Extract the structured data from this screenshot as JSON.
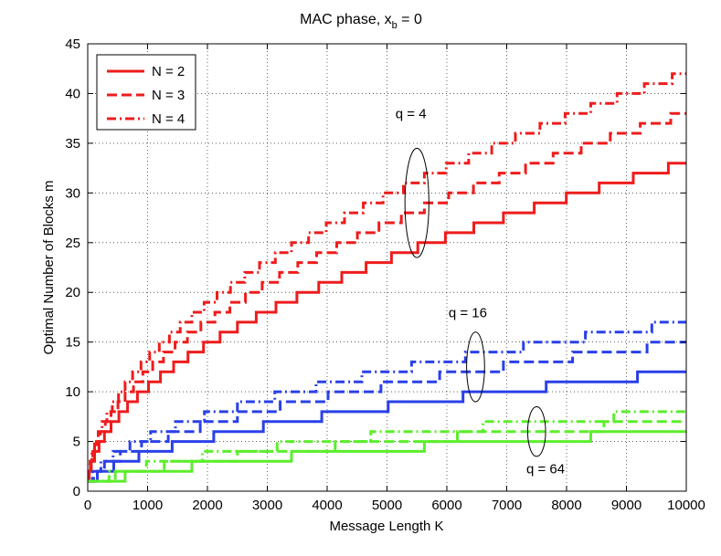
{
  "chart_data": {
    "type": "line",
    "title_main": "MAC phase, x",
    "title_sub": "b",
    "title_tail": " = 0",
    "xlabel": "Message Length K",
    "ylabel": "Optimal Number of Blocks m",
    "xlim": [
      0,
      10000
    ],
    "ylim": [
      0,
      45
    ],
    "xticks": [
      0,
      1000,
      2000,
      3000,
      4000,
      5000,
      6000,
      7000,
      8000,
      9000,
      10000
    ],
    "yticks": [
      0,
      5,
      10,
      15,
      20,
      25,
      30,
      35,
      40,
      45
    ],
    "grid": true,
    "legend_position": "top-left",
    "legend": [
      {
        "label": "N = 2",
        "style": "solid"
      },
      {
        "label": "N = 3",
        "style": "dashed"
      },
      {
        "label": "N = 4",
        "style": "dashdot"
      }
    ],
    "series": [
      {
        "q": 4,
        "N": 2,
        "color": "#ee1c1c",
        "style": "solid",
        "x": [
          0,
          10000
        ],
        "scale": 0.33,
        "exponent": 0.5
      },
      {
        "q": 4,
        "N": 3,
        "color": "#ee1c1c",
        "style": "dashed",
        "x": [
          0,
          10000
        ],
        "scale": 0.38,
        "exponent": 0.5
      },
      {
        "q": 4,
        "N": 4,
        "color": "#ee1c1c",
        "style": "dashdot",
        "x": [
          0,
          10000
        ],
        "scale": 0.42,
        "exponent": 0.5
      },
      {
        "q": 16,
        "N": 2,
        "color": "#2a40e8",
        "style": "solid",
        "x": [
          0,
          10000
        ],
        "scale": 0.12,
        "exponent": 0.5
      },
      {
        "q": 16,
        "N": 3,
        "color": "#2a40e8",
        "style": "dashed",
        "x": [
          0,
          10000
        ],
        "scale": 0.15,
        "exponent": 0.5
      },
      {
        "q": 16,
        "N": 4,
        "color": "#2a40e8",
        "style": "dashdot",
        "x": [
          0,
          10000
        ],
        "scale": 0.17,
        "exponent": 0.5
      },
      {
        "q": 64,
        "N": 2,
        "color": "#5cee2c",
        "style": "solid",
        "x": [
          0,
          10000
        ],
        "scale": 0.06,
        "exponent": 0.5
      },
      {
        "q": 64,
        "N": 3,
        "color": "#5cee2c",
        "style": "dashed",
        "x": [
          0,
          10000
        ],
        "scale": 0.07,
        "exponent": 0.5
      },
      {
        "q": 64,
        "N": 4,
        "color": "#5cee2c",
        "style": "dashdot",
        "x": [
          0,
          10000
        ],
        "scale": 0.08,
        "exponent": 0.5
      }
    ],
    "annotations": [
      {
        "text": "q = 4",
        "ellipse_center": [
          5500,
          29
        ],
        "ellipse_radii": [
          200,
          5.5
        ],
        "label_at": [
          5400,
          37.5
        ]
      },
      {
        "text": "q = 16",
        "ellipse_center": [
          6480,
          12.5
        ],
        "ellipse_radii": [
          150,
          3.5
        ],
        "label_at": [
          6350,
          17.5
        ]
      },
      {
        "text": "q = 64",
        "ellipse_center": [
          7500,
          6
        ],
        "ellipse_radii": [
          150,
          2.5
        ],
        "label_at": [
          7650,
          1.8
        ]
      }
    ]
  }
}
